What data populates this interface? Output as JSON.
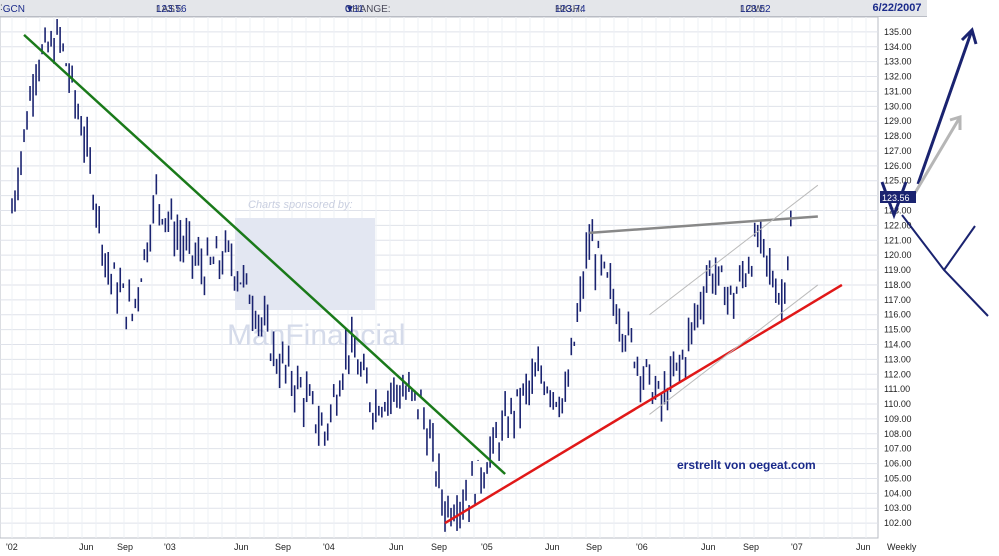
{
  "header": {
    "symbol": "GCN",
    "last_label": "LAST:",
    "last_value": "123.56",
    "change_label": "CHANGE:",
    "change_arrow": "▼",
    "change_value": "0.11",
    "high_label": "HIGH:",
    "high_value": "123.74",
    "low_label": "LOW:",
    "low_value": "123.52",
    "date": "6/22/2007"
  },
  "watermark": {
    "sponsor": "Charts sponsored by:",
    "brand": "ManFinancial"
  },
  "annotation": "erstrellt von oegeat.com",
  "price_tag": "123.56",
  "chart_data": {
    "type": "line",
    "title": "",
    "xlabel": "",
    "ylabel": "",
    "ylim": [
      101,
      136
    ],
    "yticks": [
      "135.00",
      "134.00",
      "133.00",
      "132.00",
      "131.00",
      "130.00",
      "129.00",
      "128.00",
      "127.00",
      "126.00",
      "125.00",
      "124.00",
      "123.00",
      "122.00",
      "121.00",
      "120.00",
      "119.00",
      "118.00",
      "117.00",
      "116.00",
      "115.00",
      "114.00",
      "113.00",
      "112.00",
      "111.00",
      "110.00",
      "109.00",
      "108.00",
      "107.00",
      "106.00",
      "105.00",
      "104.00",
      "103.00",
      "102.00"
    ],
    "xticks": [
      "'02",
      "Jun",
      "Sep",
      "'03",
      "Jun",
      "Sep",
      "'04",
      "Jun",
      "Sep",
      "'05",
      "Jun",
      "Sep",
      "'06",
      "Jun",
      "Sep",
      "'07",
      "Jun",
      "Weekly"
    ],
    "price_series": {
      "name": "GCN weekly",
      "x": [
        "2002-01",
        "2002-03",
        "2002-05",
        "2002-07",
        "2002-09",
        "2002-11",
        "2003-01",
        "2003-03",
        "2003-05",
        "2003-07",
        "2003-09",
        "2003-11",
        "2004-01",
        "2004-03",
        "2004-05",
        "2004-07",
        "2004-09",
        "2004-11",
        "2005-01",
        "2005-03",
        "2005-05",
        "2005-07",
        "2005-09",
        "2005-11",
        "2006-01",
        "2006-03",
        "2006-05",
        "2006-07",
        "2006-09",
        "2006-11",
        "2007-01",
        "2007-03",
        "2007-05",
        "2007-06"
      ],
      "values": [
        123,
        133,
        134.5,
        128,
        119,
        116,
        124,
        121,
        119,
        120,
        117,
        113,
        111,
        108,
        114,
        110,
        111,
        110,
        103,
        104,
        107,
        110,
        112,
        110,
        121,
        117,
        113,
        110,
        113.5,
        119,
        117,
        121,
        117,
        123.5
      ]
    },
    "trendlines": [
      {
        "color": "#1a7a1a",
        "x": [
          "2002-02",
          "2005-06"
        ],
        "y": [
          134.8,
          105.3
        ]
      },
      {
        "color": "#e01818",
        "x": [
          "2005-01",
          "2007-10"
        ],
        "y": [
          102,
          118
        ]
      },
      {
        "color": "#888888",
        "x": [
          "2006-01",
          "2007-08"
        ],
        "y": [
          121.5,
          122.6
        ]
      },
      {
        "color": "#bbbbbb",
        "x": [
          "2006-06",
          "2007-08"
        ],
        "y": [
          116,
          124.7
        ]
      },
      {
        "color": "#bbbbbb",
        "x": [
          "2006-06",
          "2007-08"
        ],
        "y": [
          109.3,
          118
        ]
      }
    ]
  }
}
